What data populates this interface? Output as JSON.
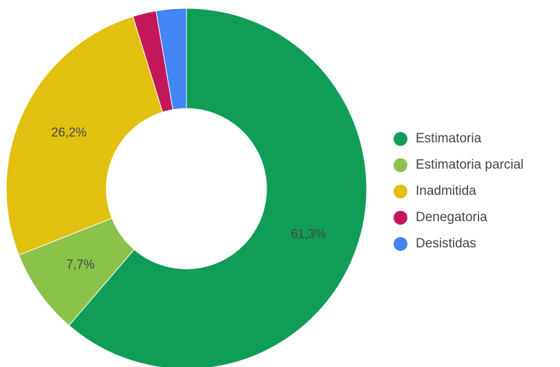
{
  "chart_data": {
    "type": "pie",
    "donut": true,
    "legend_position": "right",
    "slices": [
      {
        "label": "Estimatoria",
        "value": 61.3,
        "display": "61,3%",
        "color": "#0f9d58"
      },
      {
        "label": "Estimatoria parcial",
        "value": 7.7,
        "display": "7,7%",
        "color": "#8bc34a"
      },
      {
        "label": "Inadmitida",
        "value": 26.2,
        "display": "26,2%",
        "color": "#e2c00f"
      },
      {
        "label": "Denegatoria",
        "value": 2.1,
        "display": "",
        "color": "#c2185b"
      },
      {
        "label": "Desistidas",
        "value": 2.7,
        "display": "",
        "color": "#4285f4"
      }
    ]
  }
}
